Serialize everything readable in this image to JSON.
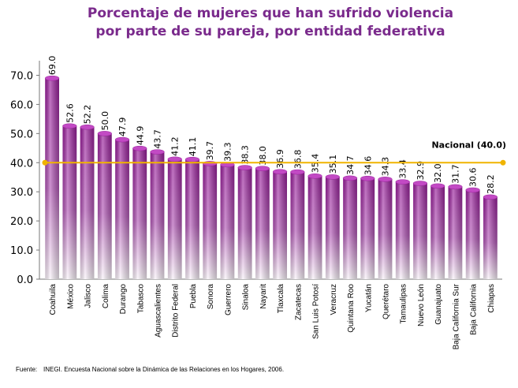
{
  "chart_data": {
    "type": "bar",
    "title": [
      "Porcentaje de mujeres que han sufrido violencia",
      "por parte de su pareja, por entidad federativa"
    ],
    "categories": [
      "Coahuila",
      "México",
      "Jalisco",
      "Colima",
      "Durango",
      "Tabasco",
      "Aguascalientes",
      "Distrito Federal",
      "Puebla",
      "Sonora",
      "Guerrero",
      "Sinaloa",
      "Nayarit",
      "Tlaxcala",
      "Zacatecas",
      "San Luis Potosí",
      "Veracruz",
      "Quintana Roo",
      "Yucatán",
      "Querétaro",
      "Tamaulipas",
      "Nuevo León",
      "Guanajuato",
      "Baja California Sur",
      "Baja California",
      "Chiapas"
    ],
    "values": [
      69.0,
      52.6,
      52.2,
      50.0,
      47.9,
      44.9,
      43.7,
      41.2,
      41.1,
      39.7,
      39.3,
      38.3,
      38.0,
      36.9,
      36.8,
      35.4,
      35.1,
      34.7,
      34.6,
      34.3,
      33.4,
      32.9,
      32.0,
      31.7,
      30.6,
      28.2
    ],
    "value_labels": [
      "69.0",
      "52.6",
      "52.2",
      "50.0",
      "47.9",
      "44.9",
      "43.7",
      "41.2",
      "41.1",
      "39.7",
      "39.3",
      "38.3",
      "38.0",
      "36.9",
      "36.8",
      "35.4",
      "35.1",
      "34.7",
      "34.6",
      "34.3",
      "33.4",
      "32.9",
      "32.0",
      "31.7",
      "30.6",
      "28.2"
    ],
    "color": "#9a1e9c",
    "ylim": [
      0,
      75
    ],
    "yticks": [
      {
        "value": 0,
        "label": "0.0"
      },
      {
        "value": 10,
        "label": "10.0"
      },
      {
        "value": 20,
        "label": "20.0"
      },
      {
        "value": 30,
        "label": "30.0"
      },
      {
        "value": 40,
        "label": "40.0"
      },
      {
        "value": 50,
        "label": "50.0"
      },
      {
        "value": 60,
        "label": "60.0"
      },
      {
        "value": 70,
        "label": "70.0"
      }
    ],
    "reference_line": {
      "value": 40,
      "label": "Nacional (40.0)",
      "color": "#f0b400"
    },
    "source": {
      "label": "Fuente:",
      "text": "INEGI. Encuesta Nacional sobre la Dinámica de las Relaciones en los Hogares, 2006."
    }
  }
}
